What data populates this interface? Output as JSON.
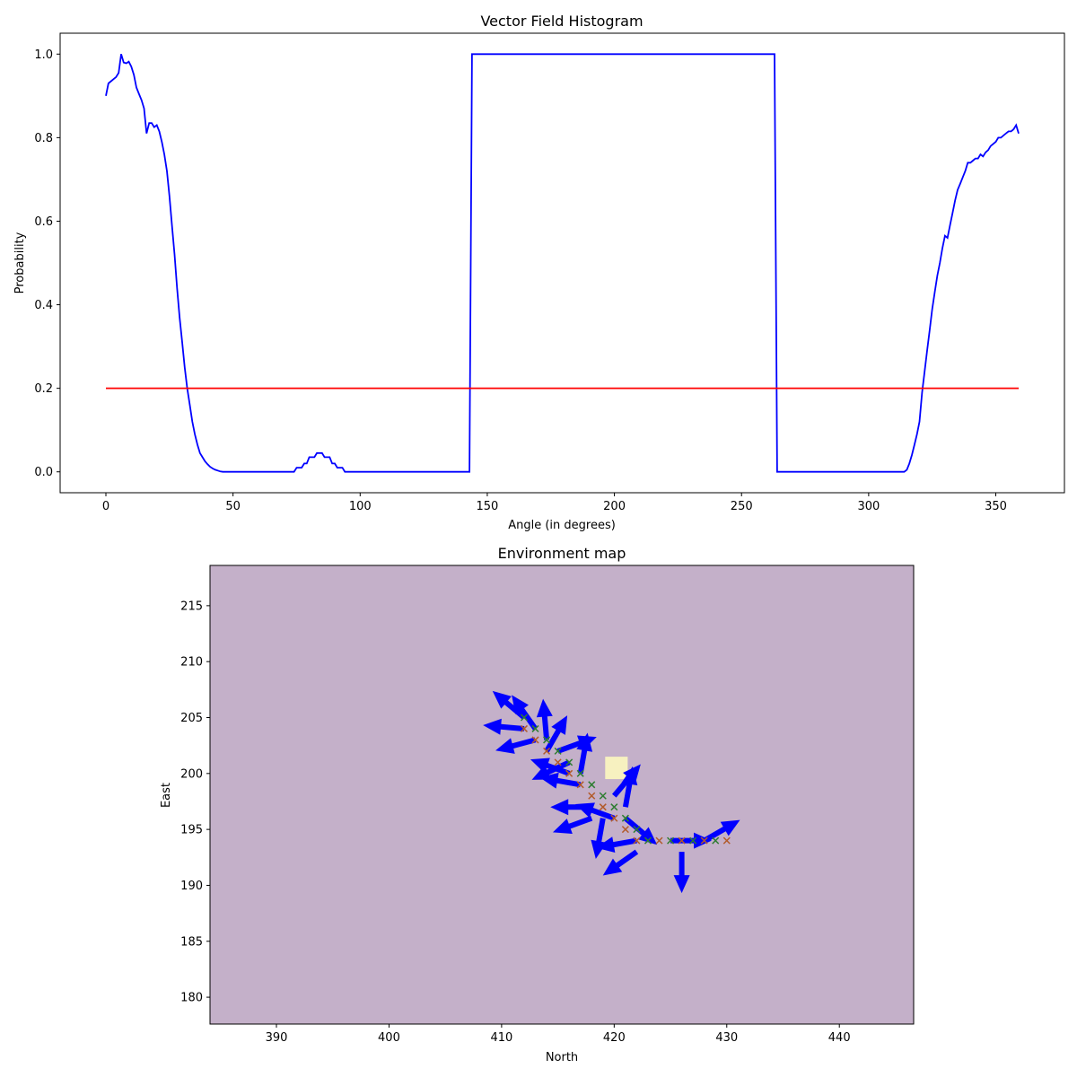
{
  "chart_data": [
    {
      "type": "line",
      "title": "Vector Field Histogram",
      "xlabel": "Angle (in degrees)",
      "ylabel": "Probability",
      "xlim": [
        -18,
        377
      ],
      "ylim": [
        -0.05,
        1.05
      ],
      "xticks": [
        "0",
        "50",
        "100",
        "150",
        "200",
        "250",
        "300",
        "350"
      ],
      "yticks": [
        "0.0",
        "0.2",
        "0.4",
        "0.6",
        "0.8",
        "1.0"
      ],
      "grid": false,
      "series": [
        {
          "color": "#0000ff",
          "x": [
            0,
            1,
            2,
            3,
            4,
            5,
            6,
            7,
            8,
            9,
            10,
            11,
            12,
            13,
            14,
            15,
            16,
            17,
            18,
            19,
            20,
            21,
            22,
            23,
            24,
            25,
            26,
            27,
            28,
            29,
            30,
            31,
            32,
            33,
            34,
            35,
            36,
            37,
            38,
            39,
            40,
            41,
            42,
            43,
            44,
            45,
            46,
            47,
            48,
            50,
            60,
            70,
            74,
            75,
            76,
            77,
            78,
            79,
            80,
            81,
            82,
            83,
            84,
            85,
            86,
            87,
            88,
            89,
            90,
            91,
            92,
            93,
            94,
            100,
            120,
            143,
            144,
            145,
            150,
            200,
            250,
            263,
            264,
            265,
            270,
            300,
            314,
            315,
            316,
            317,
            318,
            319,
            320,
            321,
            322,
            323,
            324,
            325,
            326,
            327,
            328,
            329,
            330,
            331,
            332,
            333,
            334,
            335,
            336,
            337,
            338,
            339,
            340,
            341,
            342,
            343,
            344,
            345,
            346,
            347,
            348,
            349,
            350,
            351,
            352,
            353,
            354,
            355,
            356,
            357,
            358,
            359
          ],
          "y": [
            0.9,
            0.93,
            0.935,
            0.94,
            0.945,
            0.955,
            1.0,
            0.98,
            0.978,
            0.982,
            0.97,
            0.95,
            0.92,
            0.905,
            0.89,
            0.87,
            0.81,
            0.835,
            0.835,
            0.825,
            0.83,
            0.815,
            0.79,
            0.76,
            0.72,
            0.66,
            0.59,
            0.52,
            0.44,
            0.37,
            0.31,
            0.25,
            0.2,
            0.16,
            0.12,
            0.09,
            0.065,
            0.045,
            0.035,
            0.025,
            0.018,
            0.012,
            0.008,
            0.005,
            0.003,
            0.001,
            0.0,
            0.0,
            0.0,
            0.0,
            0.0,
            0.0,
            0.0,
            0.01,
            0.01,
            0.01,
            0.02,
            0.02,
            0.035,
            0.035,
            0.035,
            0.045,
            0.045,
            0.045,
            0.035,
            0.035,
            0.035,
            0.02,
            0.02,
            0.01,
            0.01,
            0.01,
            0.0,
            0.0,
            0.0,
            0.0,
            1.0,
            1.0,
            1.0,
            1.0,
            1.0,
            1.0,
            0.0,
            0.0,
            0.0,
            0.0,
            0.0,
            0.005,
            0.02,
            0.04,
            0.065,
            0.09,
            0.12,
            0.19,
            0.24,
            0.29,
            0.34,
            0.39,
            0.43,
            0.47,
            0.5,
            0.535,
            0.565,
            0.56,
            0.59,
            0.62,
            0.65,
            0.675,
            0.69,
            0.705,
            0.72,
            0.74,
            0.74,
            0.745,
            0.75,
            0.75,
            0.76,
            0.755,
            0.765,
            0.77,
            0.78,
            0.785,
            0.79,
            0.8,
            0.8,
            0.805,
            0.81,
            0.815,
            0.815,
            0.82,
            0.83,
            0.81
          ]
        },
        {
          "color": "#ff0000",
          "x": [
            0,
            359
          ],
          "y": [
            0.2,
            0.2
          ]
        }
      ]
    },
    {
      "type": "heatmap",
      "title": "Environment map",
      "xlabel": "North",
      "ylabel": "East",
      "xlim": [
        384.1,
        446.6
      ],
      "ylim": [
        177.6,
        218.6
      ],
      "xticks": [
        "390",
        "400",
        "410",
        "420",
        "430",
        "440"
      ],
      "yticks": [
        "180",
        "185",
        "190",
        "195",
        "200",
        "205",
        "210",
        "215"
      ],
      "background_color": "#c4b0c9",
      "highlight_cell": {
        "x": 420.2,
        "y": 200.5,
        "w": 2.0,
        "h": 2.0,
        "color": "#f7f1c0"
      },
      "path_points": [
        [
          412,
          205
        ],
        [
          412,
          204
        ],
        [
          413,
          204
        ],
        [
          413,
          203
        ],
        [
          414,
          203
        ],
        [
          414,
          202
        ],
        [
          415,
          202
        ],
        [
          415,
          201
        ],
        [
          416,
          201
        ],
        [
          416,
          200
        ],
        [
          417,
          200
        ],
        [
          417,
          199
        ],
        [
          418,
          199
        ],
        [
          418,
          198
        ],
        [
          419,
          198
        ],
        [
          419,
          197
        ],
        [
          420,
          197
        ],
        [
          420,
          196
        ],
        [
          421,
          196
        ],
        [
          421,
          195
        ],
        [
          422,
          195
        ],
        [
          422,
          194
        ],
        [
          423,
          194
        ],
        [
          424,
          194
        ],
        [
          425,
          194
        ],
        [
          426,
          194
        ],
        [
          427,
          194
        ],
        [
          428,
          194
        ],
        [
          429,
          194
        ],
        [
          430,
          194
        ]
      ],
      "marker_color": "#2e7d32",
      "marker_alt_color": "#b25a2a",
      "arrows": [
        {
          "x": 412,
          "y": 205,
          "angle": 140
        },
        {
          "x": 412,
          "y": 204,
          "angle": 175
        },
        {
          "x": 413,
          "y": 203,
          "angle": 195
        },
        {
          "x": 413,
          "y": 204,
          "angle": 125
        },
        {
          "x": 414,
          "y": 203,
          "angle": 95
        },
        {
          "x": 414,
          "y": 202,
          "angle": 60
        },
        {
          "x": 415,
          "y": 202,
          "angle": 20
        },
        {
          "x": 416,
          "y": 200,
          "angle": 160
        },
        {
          "x": 416,
          "y": 201,
          "angle": 205
        },
        {
          "x": 417,
          "y": 199,
          "angle": 170
        },
        {
          "x": 417,
          "y": 200,
          "angle": 80
        },
        {
          "x": 418,
          "y": 197,
          "angle": 180
        },
        {
          "x": 418,
          "y": 196,
          "angle": 200
        },
        {
          "x": 419,
          "y": 196,
          "angle": 260
        },
        {
          "x": 420,
          "y": 196,
          "angle": 160
        },
        {
          "x": 420,
          "y": 198,
          "angle": 50
        },
        {
          "x": 421,
          "y": 197,
          "angle": 80
        },
        {
          "x": 421,
          "y": 196,
          "angle": 320
        },
        {
          "x": 422,
          "y": 194,
          "angle": 190
        },
        {
          "x": 422,
          "y": 193,
          "angle": 215
        },
        {
          "x": 425,
          "y": 194,
          "angle": 0
        },
        {
          "x": 426,
          "y": 193,
          "angle": 270
        },
        {
          "x": 428,
          "y": 194,
          "angle": 30
        }
      ],
      "arrow_color": "#0000ff"
    }
  ]
}
